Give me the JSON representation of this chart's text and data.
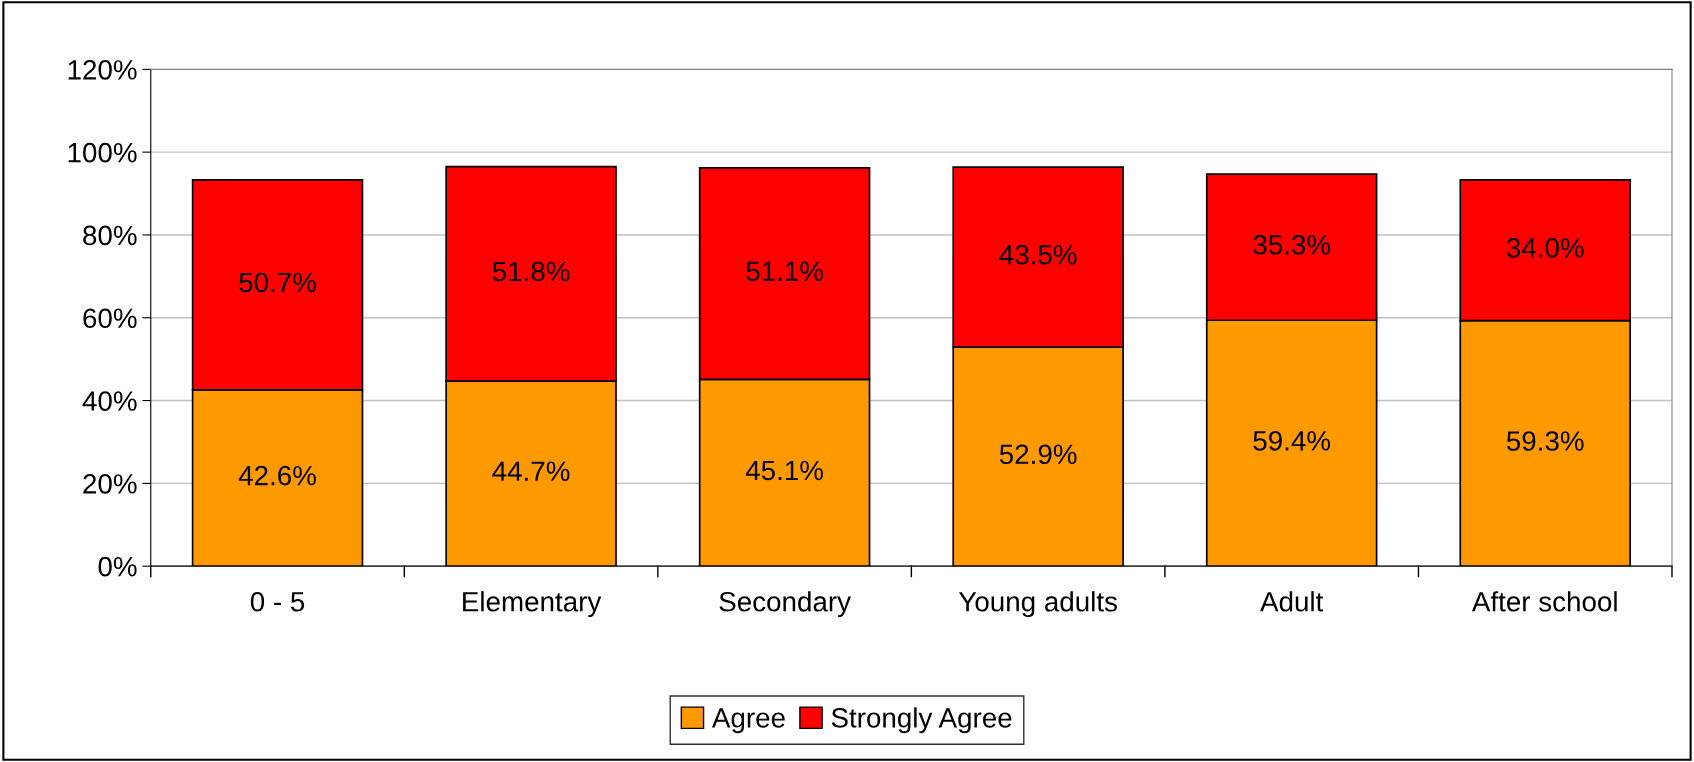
{
  "chart_data": {
    "type": "bar",
    "stacked": true,
    "categories": [
      "0 - 5",
      "Elementary",
      "Secondary",
      "Young adults",
      "Adult",
      "After school"
    ],
    "series": [
      {
        "name": "Agree",
        "color": "#ff9900",
        "values": [
          42.6,
          44.7,
          45.1,
          52.9,
          59.4,
          59.3
        ],
        "value_labels": [
          "42.6%",
          "44.7%",
          "45.1%",
          "52.9%",
          "59.4%",
          "59.3%"
        ]
      },
      {
        "name": "Strongly Agree",
        "color": "#ff0000",
        "values": [
          50.7,
          51.8,
          51.1,
          43.5,
          35.3,
          34.0
        ],
        "value_labels": [
          "50.7%",
          "51.8%",
          "51.1%",
          "43.5%",
          "35.3%",
          "34.0%"
        ]
      }
    ],
    "ylim": [
      0,
      120
    ],
    "yticks": [
      {
        "value": 0,
        "label": "0%"
      },
      {
        "value": 20,
        "label": "20%"
      },
      {
        "value": 40,
        "label": "40%"
      },
      {
        "value": 60,
        "label": "60%"
      },
      {
        "value": 80,
        "label": "80%"
      },
      {
        "value": 100,
        "label": "100%"
      },
      {
        "value": 120,
        "label": "120%"
      }
    ],
    "grid": "y",
    "legend": "bottom"
  }
}
